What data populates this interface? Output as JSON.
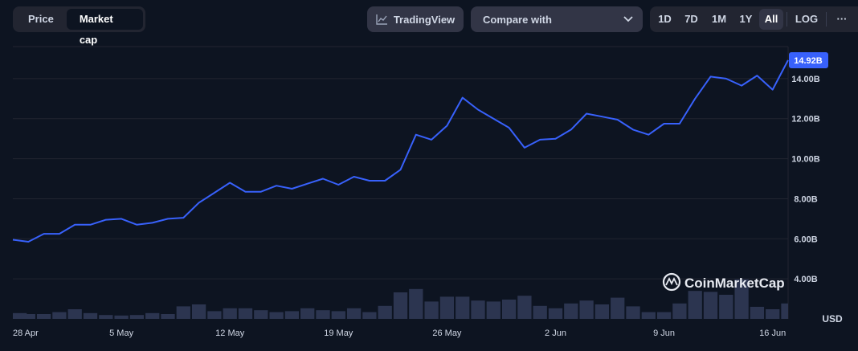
{
  "toolbar": {
    "toggle": [
      {
        "label": "Price",
        "active": false
      },
      {
        "label": "Market cap",
        "active": true
      }
    ],
    "tradingview_label": "TradingView",
    "compare_placeholder": "Compare with",
    "ranges": [
      "1D",
      "7D",
      "1M",
      "1Y",
      "All"
    ],
    "active_range": "All",
    "log_label": "LOG",
    "more_label": "···"
  },
  "watermark": "CoinMarketCap",
  "colors": {
    "background": "#0d1421",
    "line": "#3861fb",
    "volume": "#2c3550",
    "current_tag": "#3861fb",
    "grid": "#222531"
  },
  "chart_data": {
    "type": "line",
    "title": "",
    "xlabel": "",
    "ylabel": "",
    "y_unit_label": "USD",
    "ylim": [
      2.0,
      15.6
    ],
    "y_ticks": [
      4,
      6,
      8,
      10,
      12,
      14
    ],
    "y_tick_labels": [
      "4.00B",
      "6.00B",
      "8.00B",
      "10.00B",
      "12.00B",
      "14.00B"
    ],
    "x_tick_labels": [
      "28 Apr",
      "5 May",
      "12 May",
      "19 May",
      "26 May",
      "2 Jun",
      "9 Jun",
      "16 Jun"
    ],
    "x_tick_days": [
      0,
      7,
      14,
      21,
      28,
      35,
      42,
      49
    ],
    "current_value_label": "14.92B",
    "grid": true,
    "series": [
      {
        "values_billion_usd": [
          5.95,
          5.85,
          6.25,
          6.25,
          6.7,
          6.7,
          6.95,
          7.0,
          6.7,
          6.8,
          7.0,
          7.05,
          7.8,
          8.3,
          8.8,
          8.35,
          8.35,
          8.65,
          8.5,
          8.75,
          9.0,
          8.7,
          9.1,
          8.9,
          8.9,
          9.45,
          11.2,
          10.95,
          11.65,
          13.05,
          12.45,
          12.0,
          11.55,
          10.55,
          10.95,
          11.0,
          11.45,
          12.25,
          12.1,
          11.95,
          11.45,
          11.2,
          11.75,
          11.75,
          13.0,
          14.1,
          14.0,
          13.65,
          14.15,
          13.45,
          14.92
        ],
        "volume_relative": [
          0.12,
          0.1,
          0.1,
          0.14,
          0.2,
          0.12,
          0.08,
          0.07,
          0.08,
          0.12,
          0.1,
          0.26,
          0.3,
          0.16,
          0.22,
          0.22,
          0.18,
          0.14,
          0.16,
          0.22,
          0.18,
          0.16,
          0.22,
          0.14,
          0.27,
          0.55,
          0.62,
          0.36,
          0.46,
          0.46,
          0.38,
          0.36,
          0.4,
          0.48,
          0.27,
          0.22,
          0.32,
          0.38,
          0.3,
          0.44,
          0.26,
          0.14,
          0.14,
          0.32,
          0.58,
          0.56,
          0.5,
          0.82,
          0.25,
          0.2,
          0.32
        ]
      }
    ]
  }
}
